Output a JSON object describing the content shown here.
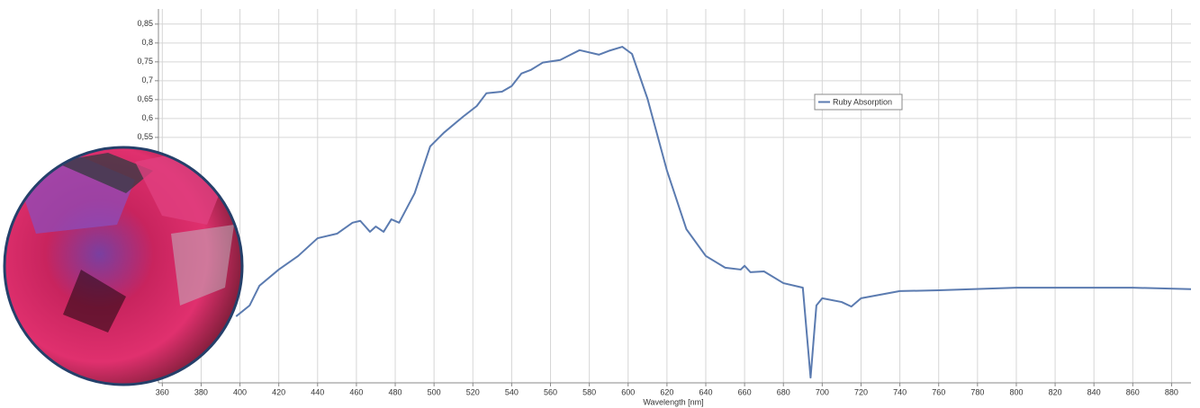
{
  "chart_data": {
    "type": "line",
    "x_label": "Wavelength [nm]",
    "x": [
      398,
      405,
      410,
      420,
      430,
      440,
      450,
      458,
      462,
      467,
      470,
      474,
      478,
      482,
      490,
      498,
      505,
      515,
      522,
      527,
      535,
      540,
      545,
      550,
      556,
      565,
      575,
      585,
      590,
      597,
      602,
      610,
      620,
      630,
      640,
      650,
      658,
      660,
      663,
      670,
      680,
      690,
      694,
      697,
      700,
      710,
      715,
      720,
      740,
      760,
      800,
      830,
      860,
      890
    ],
    "series": [
      {
        "name": "Ruby Absorption",
        "color": "#5b7bb0",
        "values": [
          0.076,
          0.105,
          0.157,
          0.2,
          0.236,
          0.283,
          0.295,
          0.324,
          0.329,
          0.3,
          0.314,
          0.3,
          0.333,
          0.324,
          0.402,
          0.526,
          0.562,
          0.605,
          0.633,
          0.667,
          0.671,
          0.686,
          0.719,
          0.729,
          0.748,
          0.755,
          0.781,
          0.769,
          0.779,
          0.79,
          0.771,
          0.652,
          0.462,
          0.307,
          0.236,
          0.205,
          0.2,
          0.21,
          0.193,
          0.195,
          0.164,
          0.152,
          -0.086,
          0.105,
          0.124,
          0.114,
          0.102,
          0.124,
          0.143,
          0.145,
          0.152,
          0.152,
          0.152,
          0.148
        ]
      }
    ],
    "xlim": [
      358,
      890
    ],
    "xticks": [
      360,
      380,
      400,
      420,
      440,
      460,
      480,
      500,
      520,
      540,
      560,
      580,
      600,
      620,
      640,
      660,
      680,
      700,
      720,
      740,
      760,
      780,
      800,
      820,
      840,
      860,
      880
    ],
    "ylim": [
      -0.1,
      0.89
    ],
    "yticks": [
      {
        "value": 0.55,
        "label": "0,55"
      },
      {
        "value": 0.6,
        "label": "0,6"
      },
      {
        "value": 0.65,
        "label": "0,65"
      },
      {
        "value": 0.7,
        "label": "0,7"
      },
      {
        "value": 0.75,
        "label": "0,75"
      },
      {
        "value": 0.8,
        "label": "0,8"
      },
      {
        "value": 0.85,
        "label": "0,85"
      }
    ],
    "grid": true,
    "legend": "upper-center"
  }
}
